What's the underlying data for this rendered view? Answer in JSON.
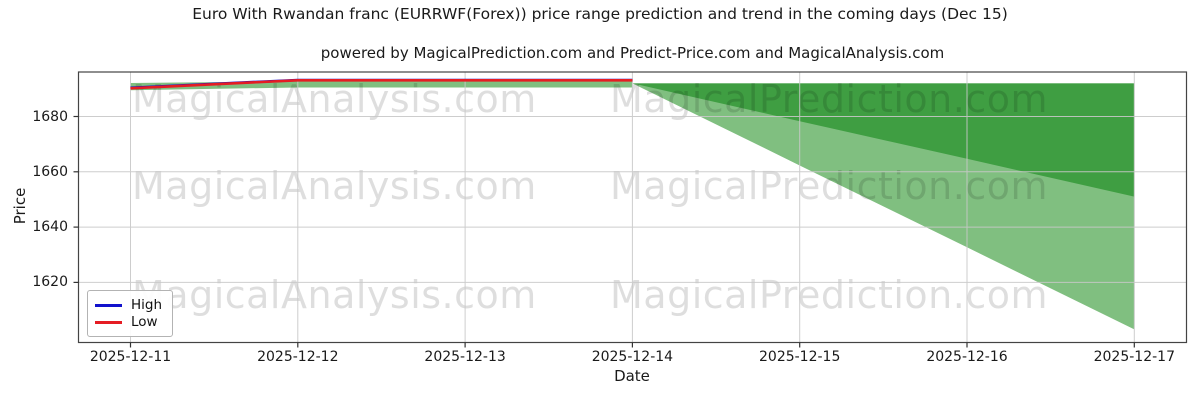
{
  "header": {
    "title": "Euro With Rwandan franc (EURRWF(Forex)) price range prediction and trend in the coming days (Dec 15)",
    "subtitle": "powered by MagicalPrediction.com and Predict-Price.com and MagicalAnalysis.com"
  },
  "chart_data": {
    "type": "line",
    "title": "Euro With Rwandan franc (EURRWF(Forex)) price range prediction and trend in the coming days (Dec 15)",
    "xlabel": "Date",
    "ylabel": "Price",
    "x": [
      "2025-12-11",
      "2025-12-12",
      "2025-12-13",
      "2025-12-14",
      "2025-12-15",
      "2025-12-16",
      "2025-12-17"
    ],
    "yticks": [
      1620,
      1640,
      1660,
      1680
    ],
    "ylim": [
      1598,
      1696
    ],
    "grid": true,
    "series": [
      {
        "name": "High",
        "color": "#1212cc",
        "values": [
          1690.4,
          1693.2,
          1693.2,
          1693.2,
          null,
          null,
          null
        ]
      },
      {
        "name": "Low",
        "color": "#e51c23",
        "values": [
          1690.2,
          1693.1,
          1693.1,
          1693.1,
          null,
          null,
          null
        ]
      }
    ],
    "bands": [
      {
        "name": "history-high-low-range",
        "color": "#80bf80",
        "x_start_index": 0,
        "top": [
          1692.1,
          1692.7,
          1692.7,
          1692.7
        ],
        "bottom": [
          1689.5,
          1690.5,
          1690.5,
          1690.5
        ]
      },
      {
        "name": "forecast-outer-range",
        "color": "#80bf80",
        "x_start_index": 3,
        "top": [
          1692.0,
          1692.0,
          1692.0,
          1692.0
        ],
        "bottom": [
          1692.0,
          1662.3,
          1632.7,
          1603.0
        ]
      },
      {
        "name": "forecast-inner-range",
        "color": "#3f9e42",
        "x_start_index": 3,
        "top": [
          1692.0,
          1692.0,
          1692.0,
          1692.0
        ],
        "bottom": [
          1692.0,
          1678.3,
          1664.7,
          1651.0
        ]
      }
    ],
    "legend": {
      "position": "lower left",
      "entries": [
        {
          "label": "High",
          "color": "#1212cc"
        },
        {
          "label": "Low",
          "color": "#e51c23"
        }
      ]
    },
    "watermarks": [
      "MagicalAnalysis.com",
      "MagicalPrediction.com"
    ]
  }
}
